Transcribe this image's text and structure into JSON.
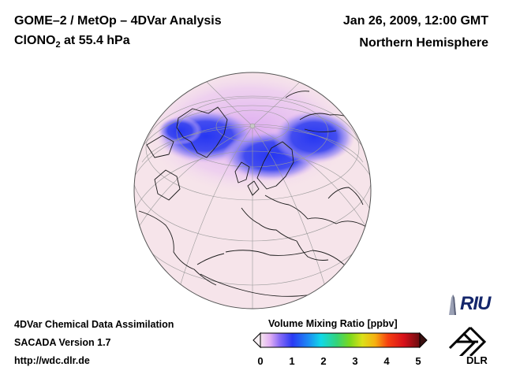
{
  "header": {
    "title_main": "GOME–2 / MetOp – 4DVar Analysis",
    "species_prefix": "ClONO",
    "species_sub": "2",
    "species_suffix": " at 55.4 hPa",
    "datetime": "Jan 26, 2009, 12:00 GMT",
    "region": "Northern Hemisphere"
  },
  "footer": {
    "line1": "4DVar Chemical Data Assimilation",
    "line2": "SACADA Version 1.7",
    "line3": "http://wdc.dlr.de"
  },
  "colorbar": {
    "title": "Volume Mixing Ratio [ppbv]",
    "ticks": [
      "0",
      "1",
      "2",
      "3",
      "4",
      "5"
    ],
    "min": 0,
    "max": 5
  },
  "logos": {
    "riu": "RIU",
    "dlr": "DLR"
  },
  "map": {
    "projection": "orthographic",
    "background_color": "#f6e4ea",
    "low_color": "#3040f0",
    "mid_color": "#d8a0f0"
  }
}
